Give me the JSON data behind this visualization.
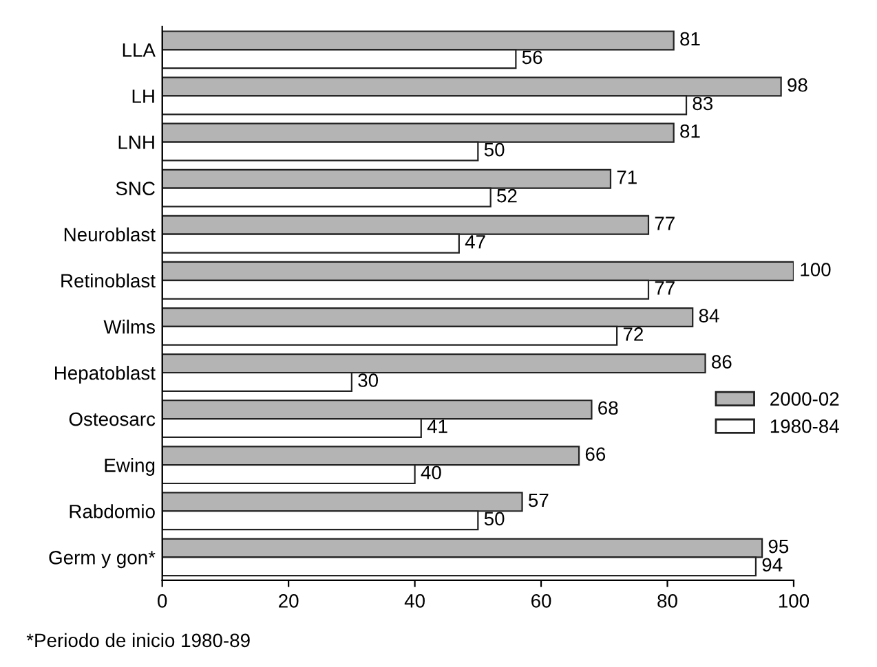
{
  "chart_data": {
    "type": "bar",
    "orientation": "horizontal",
    "categories": [
      "LLA",
      "LH",
      "LNH",
      "SNC",
      "Neuroblast",
      "Retinoblast",
      "Wilms",
      "Hepatoblast",
      "Osteosarc",
      "Ewing",
      "Rabdomio",
      "Germ y gon*"
    ],
    "series": [
      {
        "name": "2000-02",
        "color": "#b4b4b4",
        "values": [
          81,
          98,
          81,
          71,
          77,
          100,
          84,
          86,
          68,
          66,
          57,
          95
        ]
      },
      {
        "name": "1980-84",
        "color": "#ffffff",
        "values": [
          56,
          83,
          50,
          52,
          47,
          77,
          72,
          30,
          41,
          40,
          50,
          94
        ]
      }
    ],
    "xlim": [
      0,
      100
    ],
    "xticks": [
      0,
      20,
      40,
      60,
      80,
      100
    ],
    "data_labels": true,
    "grid": false,
    "legend": "right",
    "annotations": [
      "*Periodo de inicio 1980-89"
    ]
  }
}
